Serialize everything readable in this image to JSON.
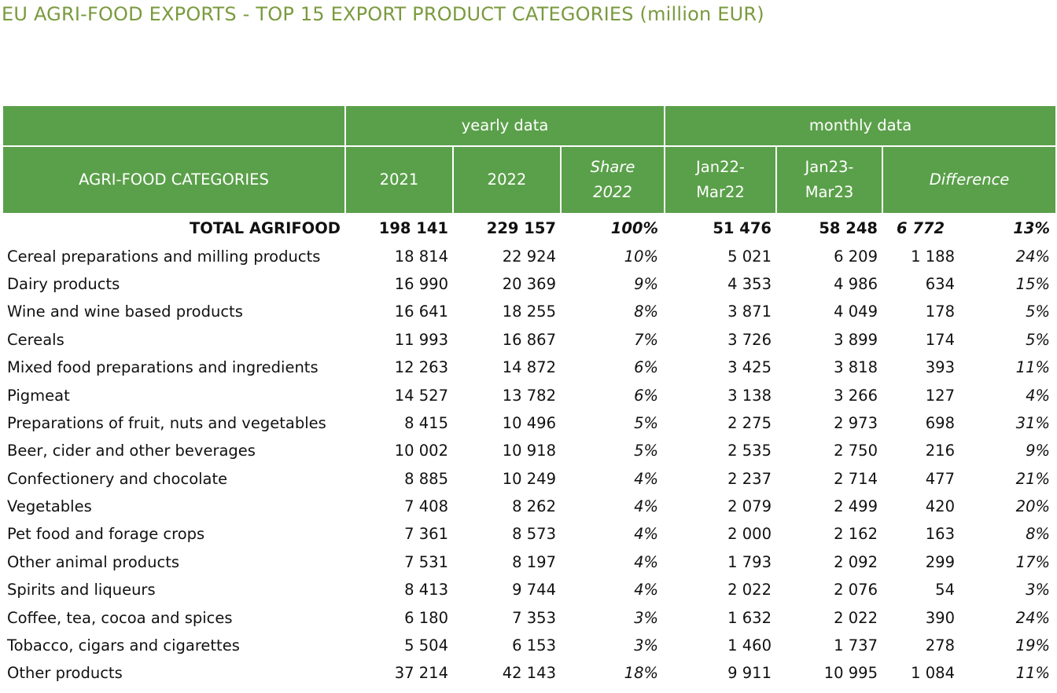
{
  "title": "EU AGRI-FOOD EXPORTS - TOP 15 EXPORT PRODUCT CATEGORIES (million EUR)",
  "header": {
    "group_yearly": "yearly data",
    "group_monthly": "monthly data",
    "col_category": "AGRI-FOOD CATEGORIES",
    "col_2021": "2021",
    "col_2022": "2022",
    "col_share_line1": "Share",
    "col_share_line2": "2022",
    "col_jan22_line1": "Jan22-",
    "col_jan22_line2": "Mar22",
    "col_jan23_line1": "Jan23-",
    "col_jan23_line2": "Mar23",
    "col_difference": "Difference"
  },
  "chart_data": {
    "type": "table",
    "title": "EU AGRI-FOOD EXPORTS - TOP 15 EXPORT PRODUCT CATEGORIES (million EUR)",
    "columns": [
      "AGRI-FOOD CATEGORIES",
      "2021",
      "2022",
      "Share 2022",
      "Jan22-Mar22",
      "Jan23-Mar23",
      "Difference",
      "Difference %"
    ],
    "total": {
      "category": "TOTAL AGRIFOOD",
      "y2021": "198 141",
      "y2022": "229 157",
      "share2022": "100%",
      "jan22mar22": "51 476",
      "jan23mar23": "58 248",
      "diff_abs": "6 772",
      "diff_pct": "13%"
    },
    "rows": [
      {
        "category": "Cereal preparations and milling products",
        "y2021": "18 814",
        "y2022": "22 924",
        "share2022": "10%",
        "jan22mar22": "5 021",
        "jan23mar23": "6 209",
        "diff_abs": "1 188",
        "diff_pct": "24%"
      },
      {
        "category": "Dairy products",
        "y2021": "16 990",
        "y2022": "20 369",
        "share2022": "9%",
        "jan22mar22": "4 353",
        "jan23mar23": "4 986",
        "diff_abs": "634",
        "diff_pct": "15%"
      },
      {
        "category": "Wine and wine based products",
        "y2021": "16 641",
        "y2022": "18 255",
        "share2022": "8%",
        "jan22mar22": "3 871",
        "jan23mar23": "4 049",
        "diff_abs": "178",
        "diff_pct": "5%"
      },
      {
        "category": "Cereals",
        "y2021": "11 993",
        "y2022": "16 867",
        "share2022": "7%",
        "jan22mar22": "3 726",
        "jan23mar23": "3 899",
        "diff_abs": "174",
        "diff_pct": "5%"
      },
      {
        "category": "Mixed food preparations and ingredients",
        "y2021": "12 263",
        "y2022": "14 872",
        "share2022": "6%",
        "jan22mar22": "3 425",
        "jan23mar23": "3 818",
        "diff_abs": "393",
        "diff_pct": "11%"
      },
      {
        "category": "Pigmeat",
        "y2021": "14 527",
        "y2022": "13 782",
        "share2022": "6%",
        "jan22mar22": "3 138",
        "jan23mar23": "3 266",
        "diff_abs": "127",
        "diff_pct": "4%"
      },
      {
        "category": "Preparations of fruit, nuts and vegetables",
        "y2021": "8 415",
        "y2022": "10 496",
        "share2022": "5%",
        "jan22mar22": "2 275",
        "jan23mar23": "2 973",
        "diff_abs": "698",
        "diff_pct": "31%"
      },
      {
        "category": "Beer, cider and other beverages",
        "y2021": "10 002",
        "y2022": "10 918",
        "share2022": "5%",
        "jan22mar22": "2 535",
        "jan23mar23": "2 750",
        "diff_abs": "216",
        "diff_pct": "9%"
      },
      {
        "category": "Confectionery and chocolate",
        "y2021": "8 885",
        "y2022": "10 249",
        "share2022": "4%",
        "jan22mar22": "2 237",
        "jan23mar23": "2 714",
        "diff_abs": "477",
        "diff_pct": "21%"
      },
      {
        "category": "Vegetables",
        "y2021": "7 408",
        "y2022": "8 262",
        "share2022": "4%",
        "jan22mar22": "2 079",
        "jan23mar23": "2 499",
        "diff_abs": "420",
        "diff_pct": "20%"
      },
      {
        "category": "Pet food and forage crops",
        "y2021": "7 361",
        "y2022": "8 573",
        "share2022": "4%",
        "jan22mar22": "2 000",
        "jan23mar23": "2 162",
        "diff_abs": "163",
        "diff_pct": "8%"
      },
      {
        "category": "Other animal products",
        "y2021": "7 531",
        "y2022": "8 197",
        "share2022": "4%",
        "jan22mar22": "1 793",
        "jan23mar23": "2 092",
        "diff_abs": "299",
        "diff_pct": "17%"
      },
      {
        "category": "Spirits and liqueurs",
        "y2021": "8 413",
        "y2022": "9 744",
        "share2022": "4%",
        "jan22mar22": "2 022",
        "jan23mar23": "2 076",
        "diff_abs": "54",
        "diff_pct": "3%"
      },
      {
        "category": "Coffee, tea, cocoa and spices",
        "y2021": "6 180",
        "y2022": "7 353",
        "share2022": "3%",
        "jan22mar22": "1 632",
        "jan23mar23": "2 022",
        "diff_abs": "390",
        "diff_pct": "24%"
      },
      {
        "category": "Tobacco, cigars and cigarettes",
        "y2021": "5 504",
        "y2022": "6 153",
        "share2022": "3%",
        "jan22mar22": "1 460",
        "jan23mar23": "1 737",
        "diff_abs": "278",
        "diff_pct": "19%"
      },
      {
        "category": "Other products",
        "y2021": "37 214",
        "y2022": "42 143",
        "share2022": "18%",
        "jan22mar22": "9 911",
        "jan23mar23": "10 995",
        "diff_abs": "1 084",
        "diff_pct": "11%"
      }
    ]
  },
  "colors": {
    "title": "#7a9a3e",
    "header_bg": "#5aa04a",
    "header_text": "#ffffff"
  }
}
